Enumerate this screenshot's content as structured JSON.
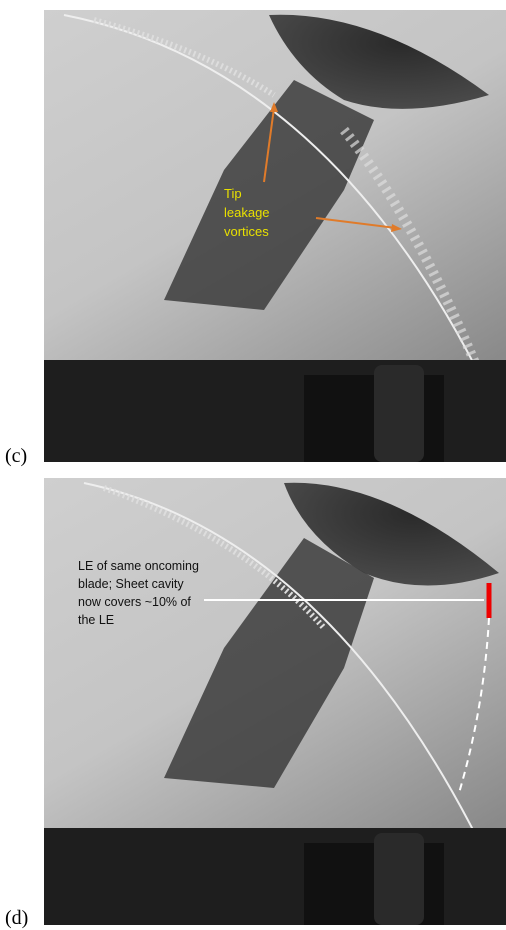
{
  "panels": [
    {
      "label": "(c)",
      "annotation": [
        "Tip",
        "leakage",
        "vortices"
      ]
    },
    {
      "label": "(d)",
      "annotation": [
        "LE of same oncoming",
        "blade; Sheet cavity",
        "now covers ~10% of",
        "the LE"
      ]
    }
  ]
}
